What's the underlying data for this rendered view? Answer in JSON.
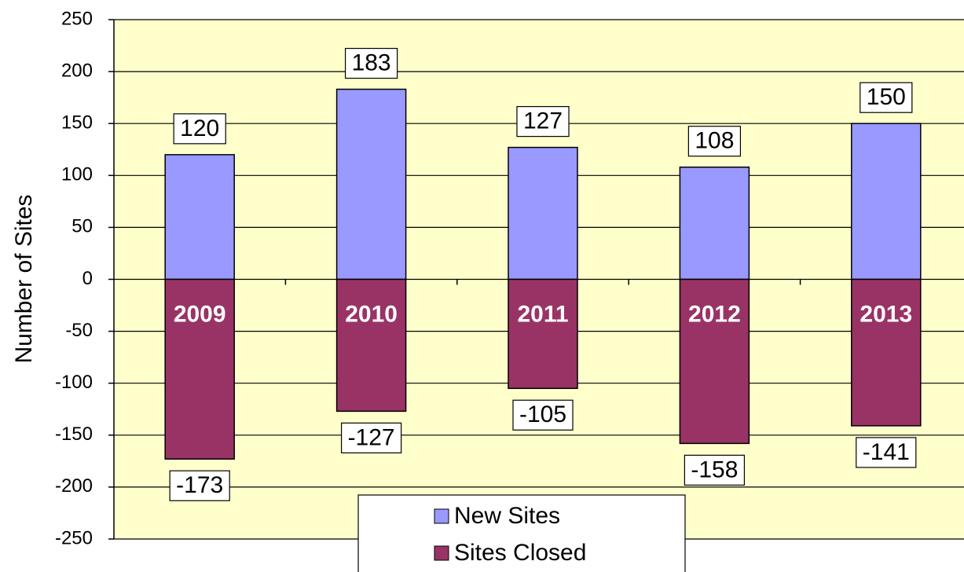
{
  "chart_data": {
    "type": "bar",
    "y_label": "Number of Sites",
    "categories": [
      "2009",
      "2010",
      "2011",
      "2012",
      "2013"
    ],
    "series": [
      {
        "name": "New Sites",
        "color": "#9999ff",
        "values": [
          120,
          183,
          127,
          108,
          150
        ]
      },
      {
        "name": "Sites Closed",
        "color": "#993366",
        "values": [
          -173,
          -127,
          -105,
          -158,
          -141
        ]
      }
    ],
    "ylim": [
      -250,
      250
    ],
    "yticks": [
      -250,
      -200,
      -150,
      -100,
      -50,
      0,
      50,
      100,
      150,
      200,
      250
    ],
    "grid": true,
    "plot_background": "#ffffcc",
    "legend": "bottom"
  }
}
